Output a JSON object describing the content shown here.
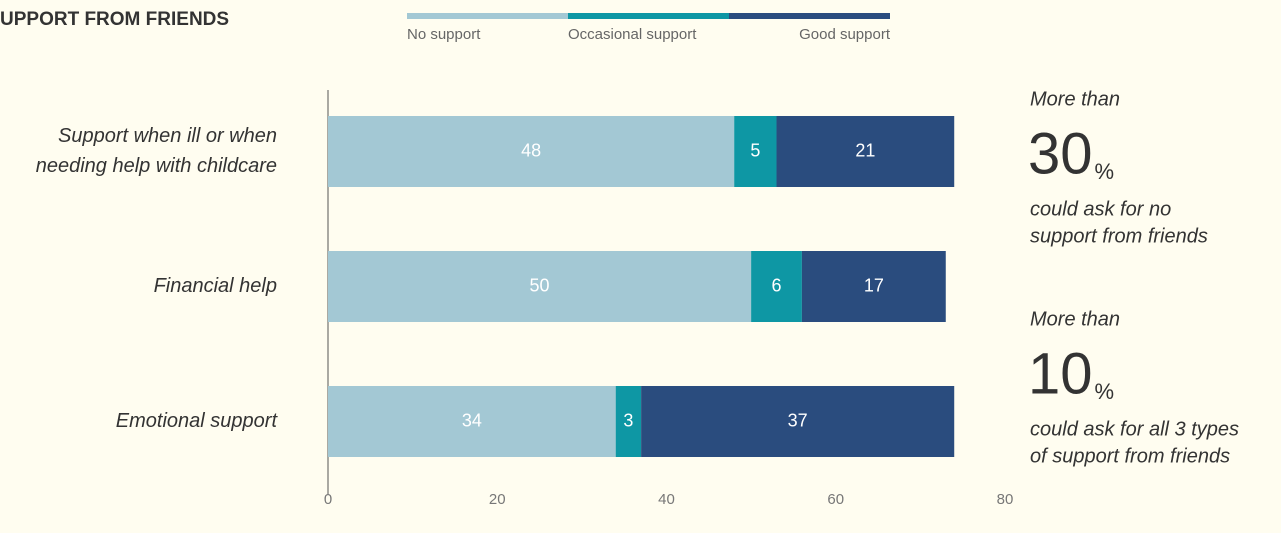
{
  "chart_data": {
    "type": "stacked-barh",
    "title": "UPPORT FROM FRIENDS",
    "categories": [
      [
        "Support when ill or when",
        "needing help with childcare"
      ],
      [
        "Financial help"
      ],
      [
        "Emotional support"
      ]
    ],
    "series": [
      {
        "name": "No support",
        "color": "#a3c8d4",
        "values": [
          48,
          50,
          34
        ]
      },
      {
        "name": "Occasional support",
        "color": "#0e97a4",
        "values": [
          5,
          6,
          3
        ]
      },
      {
        "name": "Good support",
        "color": "#2a4c7e",
        "values": [
          21,
          17,
          37
        ]
      }
    ],
    "xlim": [
      0,
      80
    ],
    "xticks": [
      0,
      20,
      40,
      60,
      80
    ],
    "annotations": [
      {
        "lead": "More than",
        "big": "30",
        "unit": "%",
        "text": [
          "could ask for no",
          "support from friends"
        ]
      },
      {
        "lead": "More than",
        "big": "10",
        "unit": "%",
        "text": [
          "could ask for all 3 types",
          "of support from friends"
        ]
      }
    ]
  }
}
